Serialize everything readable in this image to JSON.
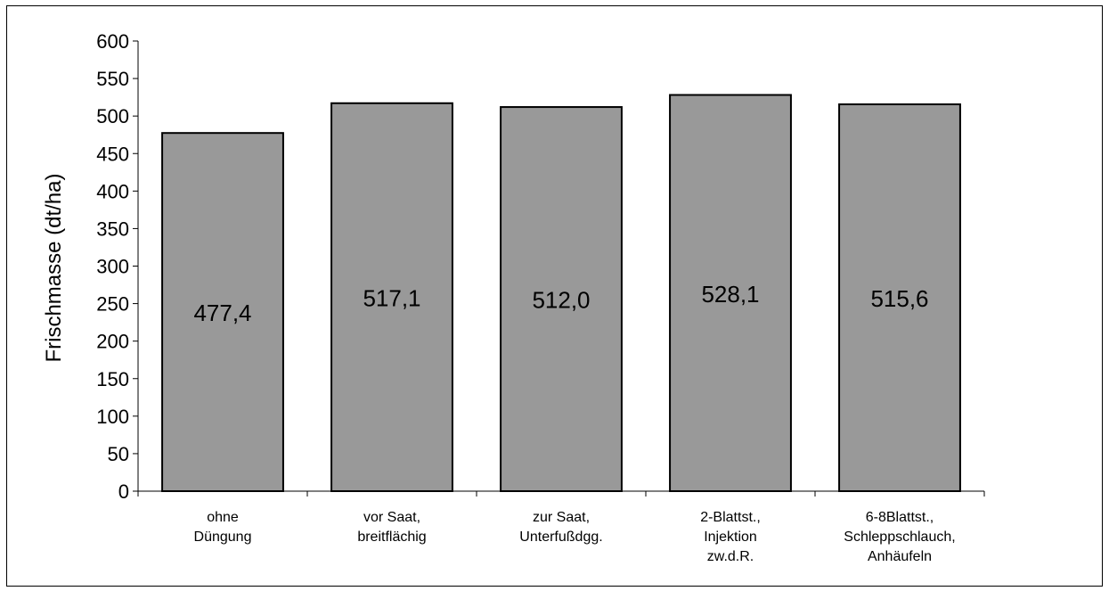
{
  "chart_data": {
    "type": "bar",
    "title": "",
    "xlabel": "",
    "ylabel": "Frischmasse (dt/ha)",
    "ylim": [
      0,
      600
    ],
    "yticks": [
      0,
      50,
      100,
      150,
      200,
      250,
      300,
      350,
      400,
      450,
      500,
      550,
      600
    ],
    "grid": false,
    "legend": "none",
    "bar_color": "#999999",
    "categories": [
      [
        "ohne",
        "Düngung"
      ],
      [
        "vor Saat,",
        "breitflächig"
      ],
      [
        "zur Saat,",
        "Unterfußdgg."
      ],
      [
        "2-Blattst.,",
        "Injektion",
        "zw.d.R."
      ],
      [
        "6-8Blattst.,",
        "Schleppschlauch,",
        "Anhäufeln"
      ]
    ],
    "values": [
      477.4,
      517.1,
      512.0,
      528.1,
      515.6
    ],
    "value_labels": [
      "477,4",
      "517,1",
      "512,0",
      "528,1",
      "515,6"
    ]
  }
}
